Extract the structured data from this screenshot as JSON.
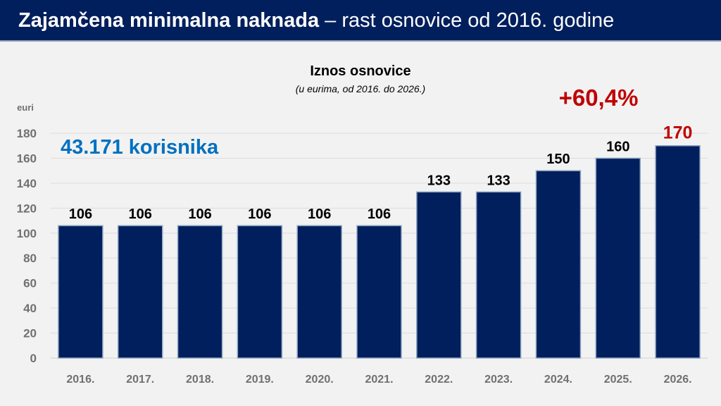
{
  "header": {
    "title_bold": "Zajamčena minimalna naknada",
    "title_rest": " – rast osnovice od 2016. godine"
  },
  "annotations": {
    "users": "43.171 korisnika",
    "growth": "+60,4%"
  },
  "colors": {
    "bar": "#001f5c",
    "header": "#001f5c",
    "users": "#0070c0",
    "growth": "#c00000"
  },
  "chart_data": {
    "type": "bar",
    "title": "Iznos osnovice",
    "subtitle": "(u eurima, od 2016. do 2026.)",
    "ylabel": "euri",
    "xlabel": "",
    "categories": [
      "2016.",
      "2017.",
      "2018.",
      "2019.",
      "2020.",
      "2021.",
      "2022.",
      "2023.",
      "2024.",
      "2025.",
      "2026."
    ],
    "values": [
      106,
      106,
      106,
      106,
      106,
      106,
      133,
      133,
      150,
      160,
      170
    ],
    "data_labels": [
      "106",
      "106",
      "106",
      "106",
      "106",
      "106",
      "133",
      "133",
      "150",
      "160",
      "170"
    ],
    "ylim": [
      0,
      180
    ],
    "yticks": [
      "0",
      "20",
      "40",
      "60",
      "80",
      "100",
      "120",
      "140",
      "160",
      "180"
    ],
    "grid": true
  }
}
